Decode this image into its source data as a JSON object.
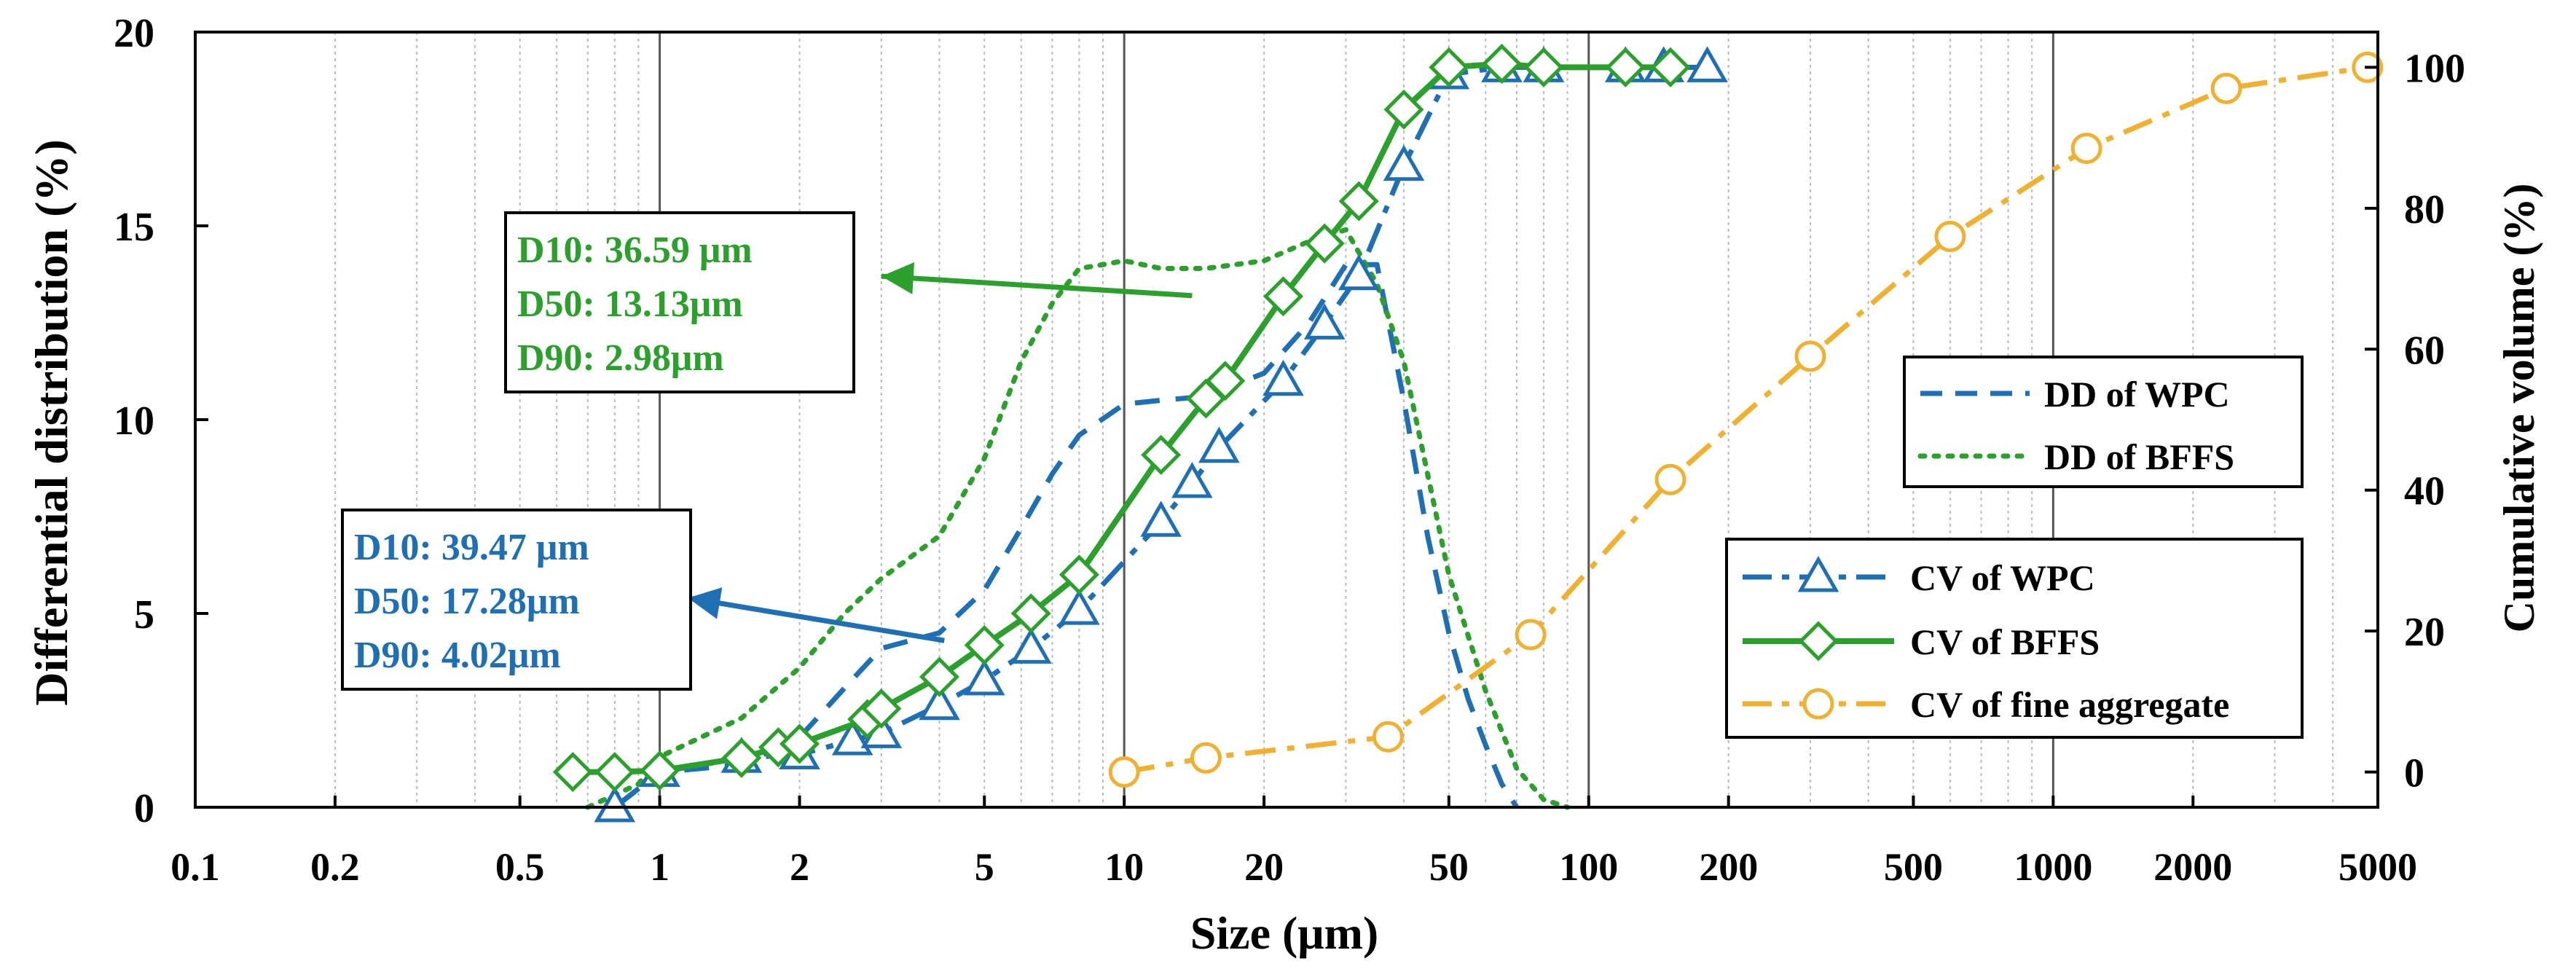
{
  "chart_data": {
    "type": "line",
    "x_scale": "log",
    "xlabel": "Size (μm)",
    "ylabel_left": "Differential distribution (%)",
    "ylabel_right": "Cumulative volume (%)",
    "xlim": [
      0.1,
      5000
    ],
    "ylim_left": [
      0,
      20
    ],
    "ylim_right": [
      -5,
      105
    ],
    "x_ticks": [
      0.1,
      0.2,
      0.5,
      1,
      2,
      5,
      10,
      20,
      50,
      100,
      200,
      500,
      1000,
      2000,
      5000
    ],
    "x_tick_labels": [
      "0.1",
      "0.2",
      "0.5",
      "1",
      "2",
      "5",
      "10",
      "20",
      "50",
      "100",
      "200",
      "500",
      "1000",
      "2000",
      "5000"
    ],
    "y_left_ticks": [
      0,
      5,
      10,
      15,
      20
    ],
    "y_left_tick_labels": [
      "0",
      "5",
      "10",
      "15",
      "20"
    ],
    "y_right_ticks": [
      0,
      20,
      40,
      60,
      80,
      100
    ],
    "y_right_tick_labels": [
      "0",
      "20",
      "40",
      "60",
      "80",
      "100"
    ],
    "grid": "vertical major and minor",
    "series": [
      {
        "name": "DD of WPC",
        "axis": "left",
        "style": "dashed",
        "color": "#1f6fb5",
        "x": [
          0.8,
          1.0,
          1.5,
          2.0,
          2.6,
          3.0,
          4.0,
          5.0,
          6.0,
          7.0,
          8.0,
          10.0,
          12.0,
          15.0,
          20.0,
          25.0,
          30.0,
          35.0,
          40.0,
          45.0,
          50.0,
          55.0,
          60.0,
          65.0,
          70.0
        ],
        "y": [
          0.0,
          0.9,
          1.1,
          1.8,
          3.3,
          4.1,
          4.5,
          5.6,
          7.2,
          8.6,
          9.6,
          10.4,
          10.5,
          10.6,
          11.2,
          12.5,
          14.0,
          14.0,
          10.5,
          7.0,
          4.5,
          2.8,
          1.6,
          0.6,
          0.0
        ]
      },
      {
        "name": "DD of BFFS",
        "axis": "left",
        "style": "dotted",
        "color": "#2ca02c",
        "x": [
          0.7,
          0.9,
          1.0,
          1.5,
          2.0,
          2.5,
          3.0,
          4.0,
          5.0,
          6.0,
          7.0,
          8.0,
          9.0,
          10.0,
          12.0,
          15.0,
          20.0,
          25.0,
          30.0,
          35.0,
          40.0,
          50.0,
          60.0,
          70.0,
          80.0,
          90.0
        ],
        "y": [
          0.0,
          0.6,
          1.3,
          2.3,
          3.6,
          5.0,
          5.9,
          7.0,
          9.0,
          11.5,
          13.0,
          13.9,
          14.0,
          14.1,
          13.9,
          13.9,
          14.1,
          14.6,
          14.9,
          13.5,
          11.5,
          6.0,
          3.0,
          1.0,
          0.2,
          0.0
        ]
      },
      {
        "name": "CV of WPC",
        "axis": "right",
        "style": "dash-dot",
        "marker": "triangle",
        "color": "#1f6fb5",
        "x": [
          0.8,
          1.0,
          1.5,
          2.0,
          2.6,
          3.0,
          4.0,
          5.0,
          6.3,
          8.0,
          12.0,
          14.0,
          16.0,
          22.0,
          27.0,
          32.0,
          40.0,
          50.0,
          65.0,
          80.0,
          120.0,
          145.0,
          180.0
        ],
        "y": [
          -5.0,
          0.0,
          2.0,
          2.5,
          4.5,
          5.5,
          9.5,
          13.0,
          17.5,
          23.0,
          35.5,
          41.0,
          46.0,
          55.5,
          63.5,
          70.5,
          86.0,
          99.0,
          100.0,
          100.0,
          100.0,
          100.0,
          100.0
        ]
      },
      {
        "name": "CV of BFFS",
        "axis": "right",
        "style": "solid",
        "marker": "diamond",
        "color": "#2ca02c",
        "x": [
          0.65,
          0.8,
          1.0,
          1.5,
          1.8,
          2.0,
          2.8,
          3.0,
          4.0,
          5.0,
          6.3,
          8.0,
          12.0,
          15.0,
          16.5,
          22.0,
          27.0,
          32.0,
          40.0,
          50.0,
          65.0,
          80.0,
          120.0,
          150.0
        ],
        "y": [
          0.0,
          0.0,
          0.2,
          2.0,
          3.5,
          4.0,
          7.5,
          9.0,
          13.5,
          18.0,
          22.5,
          28.0,
          45.0,
          53.0,
          55.5,
          67.5,
          75.0,
          81.0,
          94.0,
          100.0,
          100.5,
          100.0,
          100.0,
          100.0
        ]
      },
      {
        "name": "CV of fine aggregate",
        "axis": "right",
        "style": "dash-dot",
        "marker": "circle",
        "color": "#f0b030",
        "x": [
          10.0,
          15.0,
          37.0,
          75.0,
          150.0,
          300.0,
          600.0,
          1180.0,
          2360.0,
          4750.0
        ],
        "y": [
          0.0,
          2.0,
          5.0,
          19.5,
          41.5,
          59.0,
          76.0,
          88.5,
          97.0,
          100.0
        ]
      }
    ],
    "legend": [
      "DD of WPC",
      "DD of BFFS",
      "CV of WPC",
      "CV of BFFS",
      "CV of fine aggregate"
    ],
    "legend_placement": "right",
    "annotations": [
      {
        "name": "BFFS",
        "lines": [
          "D10: 36.59 μm",
          "D50: 13.13μm",
          "D90: 2.98μm"
        ],
        "color": "#2ca02c",
        "arrow_from": [
          14,
          13.2
        ],
        "arrow_to": [
          3.0,
          13.7
        ]
      },
      {
        "name": "WPC",
        "lines": [
          "D10: 39.47 μm",
          "D50: 17.28μm",
          "D90: 4.02μm"
        ],
        "color": "#1f6fb5",
        "arrow_from": [
          4.1,
          4.3
        ],
        "arrow_to": [
          1.15,
          5.4
        ]
      }
    ]
  }
}
